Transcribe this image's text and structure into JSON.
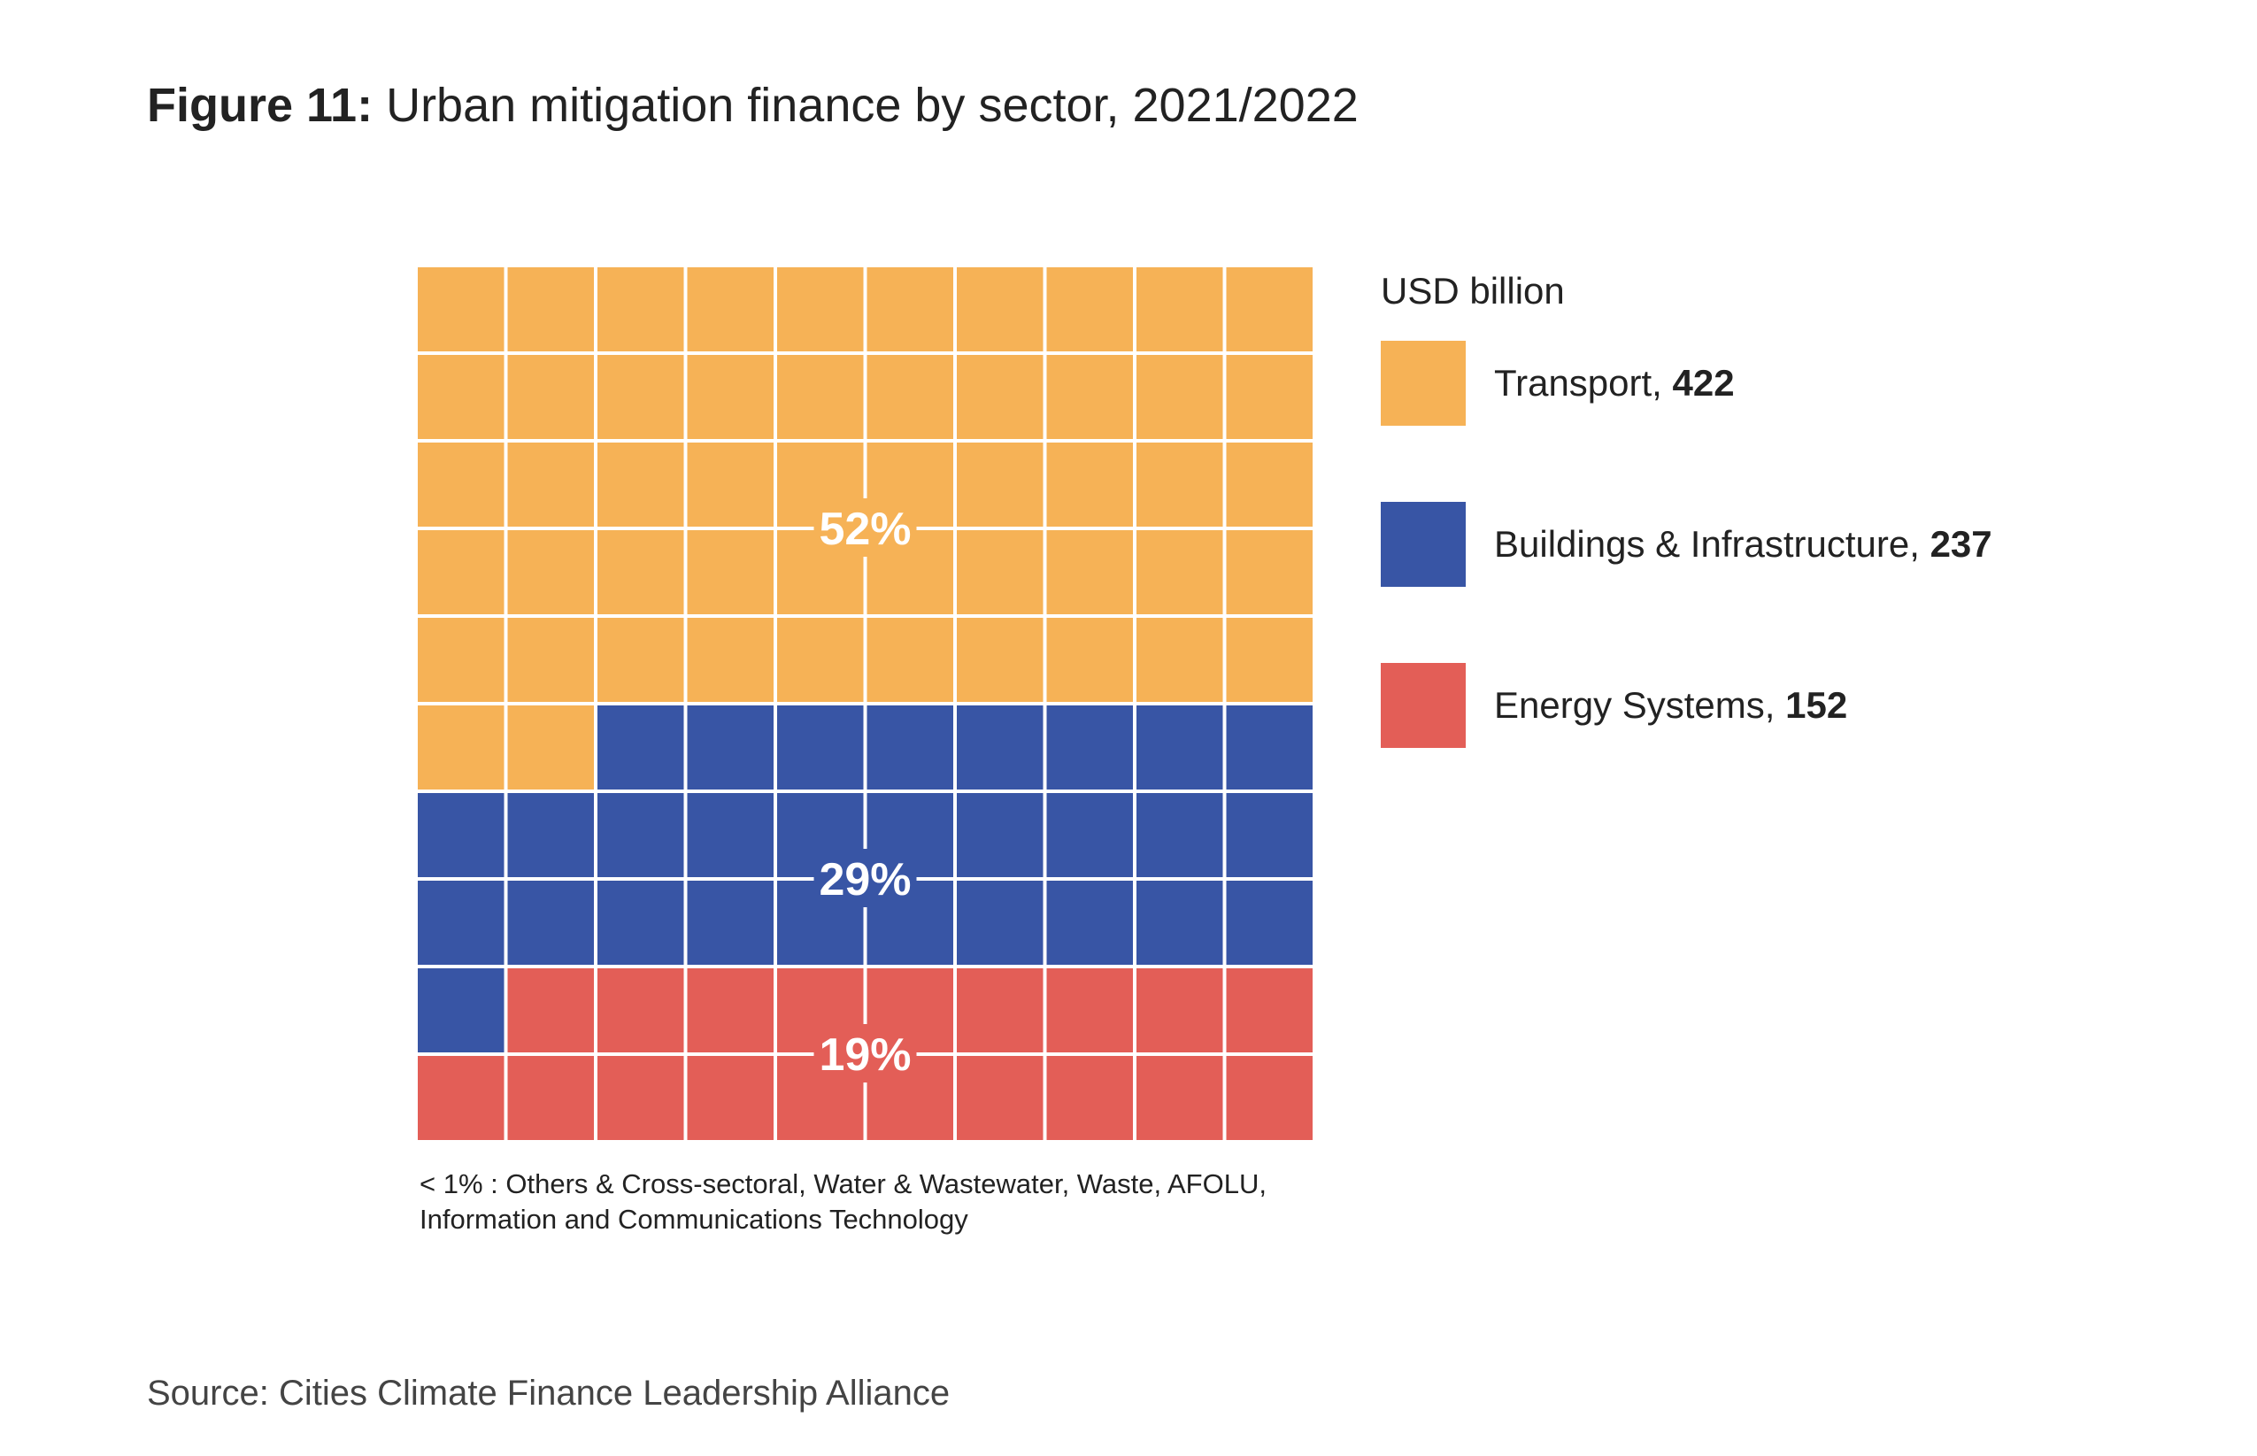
{
  "title": {
    "prefix": "Figure 11:",
    "text": " Urban mitigation finance by sector, 2021/2022"
  },
  "chart_data": {
    "type": "waffle",
    "grid": {
      "rows": 10,
      "cols": 10
    },
    "unit": "USD billion",
    "series": [
      {
        "name": "Transport",
        "value": 422,
        "percent_label": "52%",
        "cells": 52,
        "color": "#F6B256"
      },
      {
        "name": "Buildings & Infrastructure",
        "value": 237,
        "percent_label": "29%",
        "cells": 29,
        "color": "#3855A5"
      },
      {
        "name": "Energy Systems",
        "value": 152,
        "percent_label": "19%",
        "cells": 19,
        "color": "#E35E57"
      }
    ],
    "footnote": "< 1% : Others & Cross-sectoral, Water & Wastewater, Waste, AFOLU, Information and Communications Technology"
  },
  "legend": {
    "title": "USD billion",
    "items": [
      {
        "label": "Transport, ",
        "value": "422"
      },
      {
        "label": "Buildings & Infrastructure, ",
        "value": "237"
      },
      {
        "label": "Energy Systems, ",
        "value": "152"
      }
    ]
  },
  "source": "Source: Cities Climate Finance Leadership Alliance"
}
